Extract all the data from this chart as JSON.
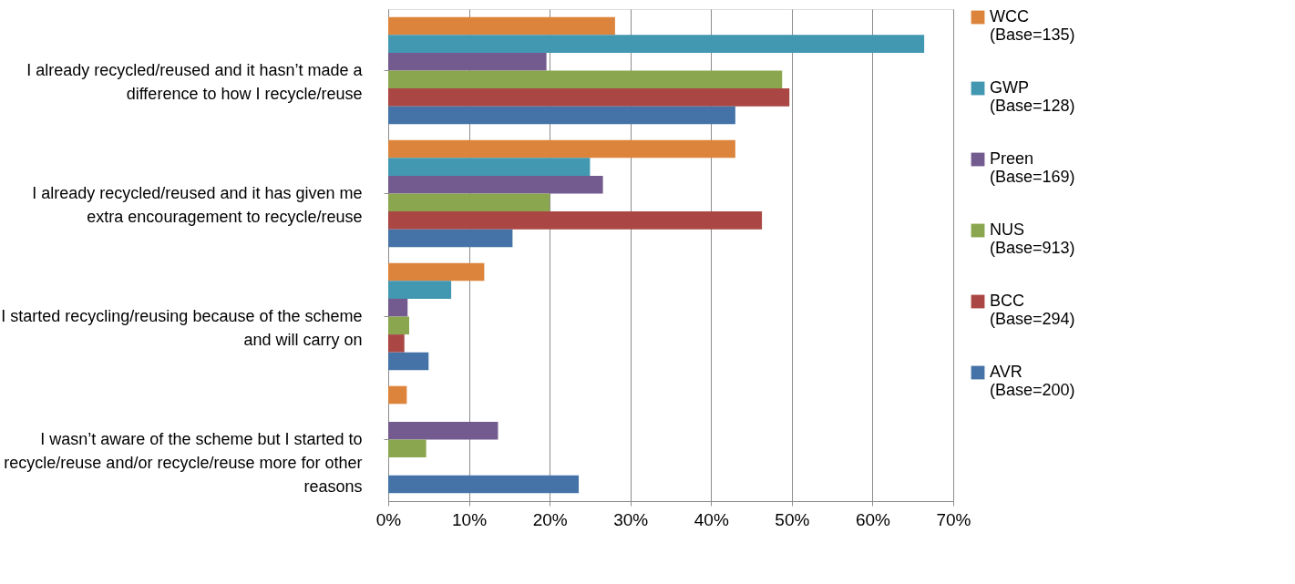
{
  "chart_data": {
    "type": "bar",
    "orientation": "horizontal",
    "categories": [
      "I already recycled/reused and it hasn’t made a difference to how I recycle/reuse",
      "I already recycled/reused and it has given me extra encouragement to recycle/reuse",
      "I started recycling/reusing because of the scheme and will carry on",
      "I wasn’t aware of the scheme but I started to recycle/reuse and/or recycle/reuse more for other reasons"
    ],
    "series": [
      {
        "name": "WCC (Base=135)",
        "color": "#dd843c",
        "values": [
          28.1,
          43.0,
          11.9,
          2.3
        ]
      },
      {
        "name": "GWP (Base=128)",
        "color": "#4298b0",
        "values": [
          66.4,
          25.0,
          7.8,
          0
        ]
      },
      {
        "name": "Preen (Base=169)",
        "color": "#735a8f",
        "values": [
          19.6,
          26.6,
          2.4,
          13.6
        ]
      },
      {
        "name": "NUS (Base=913)",
        "color": "#8aa64e",
        "values": [
          48.8,
          20.0,
          2.6,
          4.7
        ]
      },
      {
        "name": "BCC (Base=294)",
        "color": "#aa4744",
        "values": [
          49.7,
          46.3,
          2.0,
          0
        ]
      },
      {
        "name": "AVR (Base=200)",
        "color": "#4573a7",
        "values": [
          43.0,
          15.4,
          5.0,
          23.6
        ]
      }
    ],
    "xlim": [
      0,
      70
    ],
    "xticks": [
      {
        "value": 0,
        "label": "0%"
      },
      {
        "value": 10,
        "label": "10%"
      },
      {
        "value": 20,
        "label": "20%"
      },
      {
        "value": 30,
        "label": "30%"
      },
      {
        "value": 40,
        "label": "40%"
      },
      {
        "value": 50,
        "label": "50%"
      },
      {
        "value": 60,
        "label": "60%"
      },
      {
        "value": 70,
        "label": "70%"
      }
    ],
    "grid": "x",
    "legend": "right"
  }
}
